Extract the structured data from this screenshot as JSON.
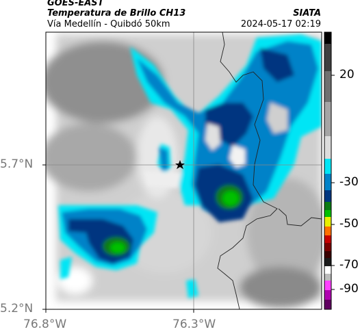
{
  "header": {
    "satellite": "GOES-EAST",
    "product": "Temperatura de Brillo CH13",
    "region": "Vía Medellín - Quibdó 50km",
    "org": "SIATA",
    "timestamp": "2024-05-17 02:19"
  },
  "map": {
    "lat_ticks": [
      "5.7°N",
      "5.2°N"
    ],
    "lon_ticks": [
      "76.8°W",
      "76.3°W"
    ],
    "marker_icon": "star-icon"
  },
  "colorbar": {
    "ticks": [
      "20",
      "-30",
      "-50",
      "-70",
      "-90"
    ],
    "colors": [
      "#000000",
      "#606060",
      "#bdbdbd",
      "#ffffff",
      "#00e5f5",
      "#0082c8",
      "#003680",
      "#0a7a14",
      "#00c000",
      "#e8f000",
      "#ff7000",
      "#c80000",
      "#3a0000",
      "#e0e0e0",
      "#ff40ff",
      "#a000a0"
    ]
  }
}
